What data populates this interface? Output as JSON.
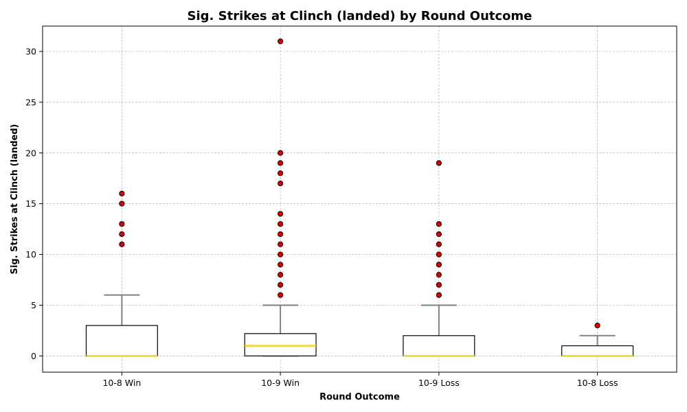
{
  "chart_data": {
    "type": "boxplot",
    "title": "Sig. Strikes at Clinch (landed) by Round Outcome",
    "xlabel": "Round Outcome",
    "ylabel": "Sig. Strikes at Clinch (landed)",
    "ylim": [
      -1.6,
      32.5
    ],
    "yticks": [
      0,
      5,
      10,
      15,
      20,
      25,
      30
    ],
    "grid": true,
    "colors": {
      "box_edge": "#000000",
      "box_fill": "#ffffff",
      "median": "#f5d01c",
      "whisker": "#808080",
      "flier_fill": "#dd0000",
      "flier_edge": "#000000",
      "grid": "#b0b0b0"
    },
    "categories": [
      "10-8 Win",
      "10-9 Win",
      "10-9 Loss",
      "10-8 Loss"
    ],
    "boxes": [
      {
        "q1": 0,
        "median": 0,
        "q3": 3,
        "whislo": 0,
        "whishi": 6,
        "fliers": [
          11,
          12,
          13,
          15,
          16
        ]
      },
      {
        "q1": 0,
        "median": 1,
        "q3": 2.2,
        "whislo": 0,
        "whishi": 5,
        "fliers": [
          6,
          7,
          8,
          9,
          10,
          11,
          12,
          13,
          14,
          17,
          18,
          19,
          20,
          31
        ]
      },
      {
        "q1": 0,
        "median": 0,
        "q3": 2,
        "whislo": 0,
        "whishi": 5,
        "fliers": [
          6,
          7,
          8,
          9,
          10,
          11,
          12,
          13,
          19
        ]
      },
      {
        "q1": 0,
        "median": 0,
        "q3": 1,
        "whislo": 0,
        "whishi": 2,
        "fliers": [
          3
        ]
      }
    ]
  }
}
